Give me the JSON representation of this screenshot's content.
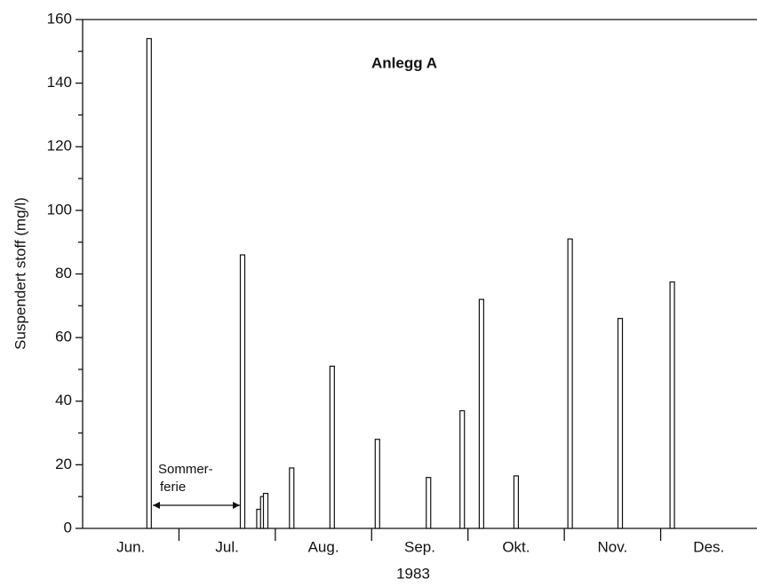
{
  "chart_data": {
    "type": "bar",
    "title": "Anlegg A",
    "y_label": "Suspendert stoff (mg/l)",
    "x_label": "1983",
    "categories": [
      "Jun.",
      "Jul.",
      "Aug.",
      "Sep.",
      "Okt.",
      "Nov.",
      "Des."
    ],
    "x": [
      0.69,
      1.66,
      1.83,
      1.87,
      1.9,
      2.17,
      2.59,
      3.06,
      3.59,
      3.94,
      4.14,
      4.5,
      5.06,
      5.58,
      6.12
    ],
    "values": [
      154,
      86,
      6,
      10,
      11,
      19,
      51,
      28,
      16,
      37,
      72,
      16.5,
      91,
      66,
      77.5
    ],
    "color": "#ffffff",
    "xlim": [
      0,
      7
    ],
    "ylim": [
      0,
      160
    ],
    "yticks": [
      0,
      20,
      40,
      60,
      80,
      100,
      120,
      140,
      160
    ],
    "minor_yticks": [
      10,
      30,
      50,
      70,
      90,
      110,
      130,
      150
    ],
    "annotation": [
      "Sommer-",
      "ferie"
    ]
  }
}
